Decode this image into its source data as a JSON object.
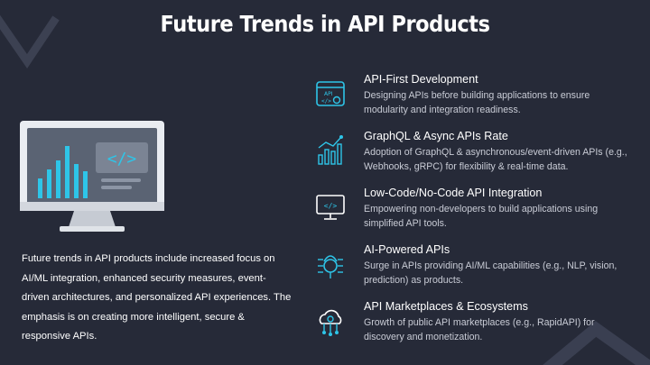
{
  "slide": {
    "title": "Future Trends in API Products",
    "summary": "Future trends in API products include increased focus on AI/ML integration, enhanced security measures, event-driven architectures, and personalized API experiences. The emphasis is on creating more intelligent, secure & responsive APIs."
  },
  "trends": [
    {
      "icon": "api-settings-icon",
      "title": "API-First Development",
      "description": "Designing APIs before building applications to ensure modularity and integration readiness."
    },
    {
      "icon": "growth-chart-icon",
      "title": "GraphQL & Async APIs Rate",
      "description": "Adoption of GraphQL & asynchronous/event-driven APIs (e.g., Webhooks, gRPC) for flexibility & real-time data."
    },
    {
      "icon": "code-monitor-icon",
      "title": "Low-Code/No-Code API Integration",
      "description": "Empowering non-developers to build applications using simplified API tools."
    },
    {
      "icon": "ai-chip-icon",
      "title": "AI-Powered APIs",
      "description": "Surge in APIs providing AI/ML capabilities (e.g., NLP, vision, prediction) as products."
    },
    {
      "icon": "cloud-network-icon",
      "title": "API Marketplaces & Ecosystems",
      "description": "Growth of public API marketplaces (e.g., RapidAPI) for discovery and monetization."
    }
  ],
  "colors": {
    "background": "#262a38",
    "accent": "#2ec5e8",
    "screen": "#5a6373",
    "chart_bars": "#2ec5e8"
  }
}
